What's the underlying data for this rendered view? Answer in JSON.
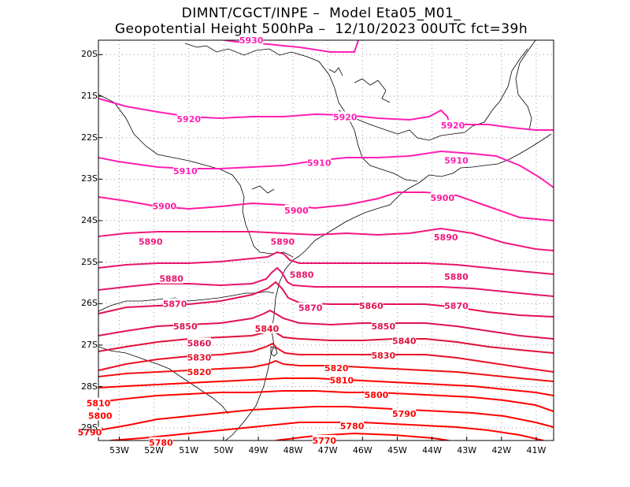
{
  "title": {
    "line1": "DIMNT/CGCT/INPE –  Model Eta05_M01_",
    "line2": "Geopotential Height 500hPa –  12/10/2023 00UTC fct=39h"
  },
  "axes": {
    "lat_labels": [
      "20S",
      "21S",
      "22S",
      "23S",
      "24S",
      "25S",
      "26S",
      "27S",
      "28S",
      "29S"
    ],
    "lon_labels": [
      "53W",
      "52W",
      "51W",
      "50W",
      "49W",
      "48W",
      "47W",
      "46W",
      "45W",
      "44W",
      "43W",
      "42W",
      "41W"
    ]
  },
  "contours": [
    {
      "value": "5930",
      "color": "#ff1fb4",
      "labels": [
        {
          "text": "5930",
          "lon": -49.2,
          "lat": -19.65
        }
      ]
    },
    {
      "value": "5920",
      "color": "#ff1fb4",
      "labels": [
        {
          "text": "5920",
          "lon": -51.0,
          "lat": -21.55
        },
        {
          "text": "5920",
          "lon": -46.5,
          "lat": -21.5
        },
        {
          "text": "5920",
          "lon": -43.4,
          "lat": -21.7
        }
      ]
    },
    {
      "value": "5910",
      "color": "#ff1fb4",
      "labels": [
        {
          "text": "5910",
          "lon": -51.1,
          "lat": -22.8
        },
        {
          "text": "5910",
          "lon": -47.25,
          "lat": -22.6
        },
        {
          "text": "5910",
          "lon": -43.3,
          "lat": -22.55
        }
      ]
    },
    {
      "value": "5900",
      "color": "#ff1a9b",
      "labels": [
        {
          "text": "5900",
          "lon": -51.7,
          "lat": -23.65
        },
        {
          "text": "5900",
          "lon": -47.9,
          "lat": -23.75
        },
        {
          "text": "5900",
          "lon": -43.7,
          "lat": -23.45
        }
      ]
    },
    {
      "value": "5890",
      "color": "#f0187e",
      "labels": [
        {
          "text": "5890",
          "lon": -52.1,
          "lat": -24.5
        },
        {
          "text": "5890",
          "lon": -48.3,
          "lat": -24.5
        },
        {
          "text": "5890",
          "lon": -43.6,
          "lat": -24.4
        }
      ]
    },
    {
      "value": "5880",
      "color": "#e8146a",
      "labels": [
        {
          "text": "5880",
          "lon": -51.5,
          "lat": -25.4
        },
        {
          "text": "5880",
          "lon": -47.75,
          "lat": -25.3
        },
        {
          "text": "5880",
          "lon": -43.3,
          "lat": -25.35
        }
      ]
    },
    {
      "value": "5870",
      "color": "#e8146a",
      "labels": [
        {
          "text": "5870",
          "lon": -51.4,
          "lat": -26.0
        },
        {
          "text": "5870",
          "lon": -47.5,
          "lat": -26.1
        },
        {
          "text": "5870",
          "lon": -43.3,
          "lat": -26.05
        }
      ]
    },
    {
      "value": "5860",
      "color": "#e0124f",
      "labels": [
        {
          "text": "5860",
          "lon": -50.7,
          "lat": -26.95
        },
        {
          "text": "5860",
          "lon": -45.75,
          "lat": -26.05
        }
      ]
    },
    {
      "value": "5850",
      "color": "#e0124f",
      "labels": [
        {
          "text": "5850",
          "lon": -51.1,
          "lat": -26.55
        },
        {
          "text": "5850",
          "lon": -45.4,
          "lat": -26.55
        }
      ]
    },
    {
      "value": "5840",
      "color": "#e0103a",
      "labels": [
        {
          "text": "5840",
          "lon": -48.75,
          "lat": -26.6
        },
        {
          "text": "5840",
          "lon": -44.8,
          "lat": -26.9
        }
      ]
    },
    {
      "value": "5830",
      "color": "#e8102a",
      "labels": [
        {
          "text": "5830",
          "lon": -50.7,
          "lat": -27.3
        },
        {
          "text": "5830",
          "lon": -45.4,
          "lat": -27.25
        }
      ]
    },
    {
      "value": "5820",
      "color": "#f01010",
      "labels": [
        {
          "text": "5820",
          "lon": -50.7,
          "lat": -27.65
        },
        {
          "text": "5820",
          "lon": -46.75,
          "lat": -27.55
        }
      ]
    },
    {
      "value": "5810",
      "color": "#ff0000",
      "labels": [
        {
          "text": "5810",
          "lon": -53.6,
          "lat": -28.4
        },
        {
          "text": "5810",
          "lon": -46.6,
          "lat": -27.85
        }
      ]
    },
    {
      "value": "5800",
      "color": "#ff0000",
      "labels": [
        {
          "text": "5800",
          "lon": -53.55,
          "lat": -28.7
        },
        {
          "text": "5800",
          "lon": -45.6,
          "lat": -28.2
        }
      ]
    },
    {
      "value": "5790",
      "color": "#ff0000",
      "labels": [
        {
          "text": "5790",
          "lon": -53.85,
          "lat": -29.1
        },
        {
          "text": "5790",
          "lon": -44.8,
          "lat": -28.65
        }
      ]
    },
    {
      "value": "5780",
      "color": "#ff0000",
      "labels": [
        {
          "text": "5780",
          "lon": -51.8,
          "lat": -29.35
        },
        {
          "text": "5780",
          "lon": -46.3,
          "lat": -28.95
        }
      ]
    },
    {
      "value": "5770",
      "color": "#ff0000",
      "labels": [
        {
          "text": "5770",
          "lon": -47.1,
          "lat": -29.3
        }
      ]
    }
  ],
  "colors": {
    "frame": "#000000",
    "grid": "#999999",
    "coast": "#000000"
  }
}
